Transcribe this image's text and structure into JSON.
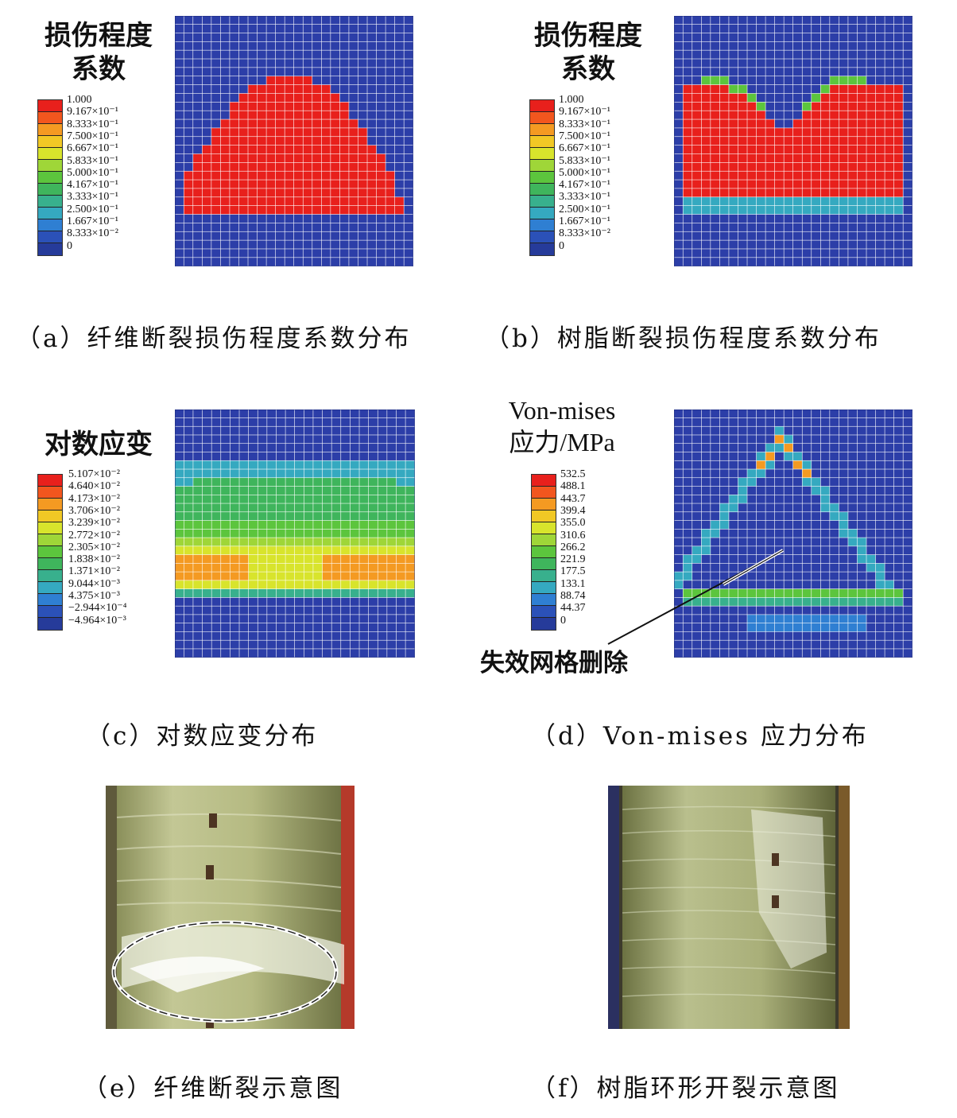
{
  "panels": {
    "a": {
      "legend_title": [
        "损伤程度",
        "系数"
      ],
      "legend_labels": [
        "1.000",
        "9.167×10⁻¹",
        "8.333×10⁻¹",
        "7.500×10⁻¹",
        "6.667×10⁻¹",
        "5.833×10⁻¹",
        "5.000×10⁻¹",
        "4.167×10⁻¹",
        "3.333×10⁻¹",
        "2.500×10⁻¹",
        "1.667×10⁻¹",
        "8.333×10⁻²",
        "0"
      ],
      "caption": "（a）纤维断裂损伤程度系数分布"
    },
    "b": {
      "legend_title": [
        "损伤程度",
        "系数"
      ],
      "legend_labels": [
        "1.000",
        "9.167×10⁻¹",
        "8.333×10⁻¹",
        "7.500×10⁻¹",
        "6.667×10⁻¹",
        "5.833×10⁻¹",
        "5.000×10⁻¹",
        "4.167×10⁻¹",
        "3.333×10⁻¹",
        "2.500×10⁻¹",
        "1.667×10⁻¹",
        "8.333×10⁻²",
        "0"
      ],
      "caption": "（b）树脂断裂损伤程度系数分布"
    },
    "c": {
      "legend_title": [
        "对数应变"
      ],
      "legend_labels": [
        "5.107×10⁻²",
        "4.640×10⁻²",
        "4.173×10⁻²",
        "3.706×10⁻²",
        "3.239×10⁻²",
        "2.772×10⁻²",
        "2.305×10⁻²",
        "1.838×10⁻²",
        "1.371×10⁻²",
        "9.044×10⁻³",
        "4.375×10⁻³",
        "−2.944×10⁻⁴",
        "−4.964×10⁻³"
      ],
      "caption": "（c）对数应变分布"
    },
    "d": {
      "legend_title": [
        "Von-mises",
        "应力/MPa"
      ],
      "legend_labels": [
        "532.5",
        "488.1",
        "443.7",
        "399.4",
        "355.0",
        "310.6",
        "266.2",
        "221.9",
        "177.5",
        "133.1",
        "88.74",
        "44.37",
        "0"
      ],
      "annotation": "失效网格删除",
      "caption": "（d）Von-mises 应力分布"
    },
    "e": {
      "caption": "（e）纤维断裂示意图"
    },
    "f": {
      "caption": "（f）树脂环形开裂示意图"
    }
  },
  "colors": {
    "legend_scale": [
      "#e8201c",
      "#f2561e",
      "#f49a22",
      "#f1c825",
      "#d8e42c",
      "#9fd638",
      "#5cc53d",
      "#3fb55c",
      "#38b08d",
      "#35a9c0",
      "#2f7fd2",
      "#2b51b8",
      "#263b9a"
    ],
    "mesh_blue": "#2c3ea8",
    "fiberglass": "#b8be8a"
  }
}
